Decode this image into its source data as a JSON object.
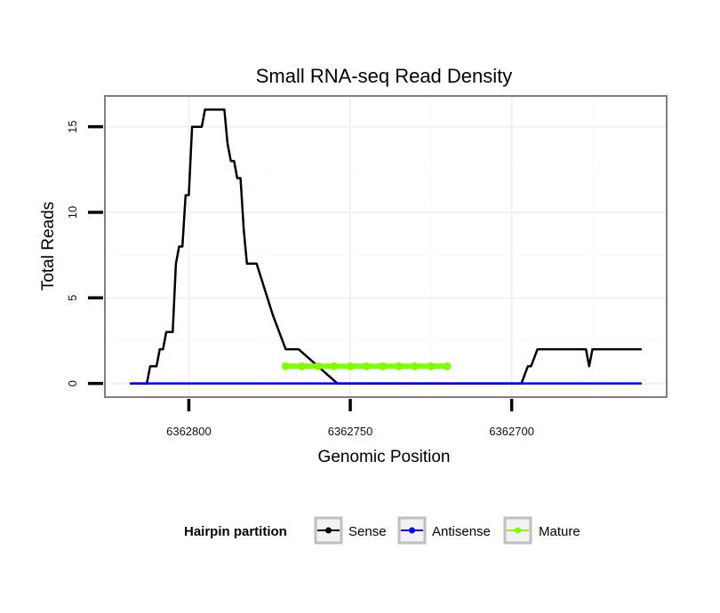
{
  "chart_data": {
    "type": "line",
    "title": "Small RNA-seq Read Density",
    "xlabel": "Genomic Position",
    "ylabel": "Total Reads",
    "x_reversed": true,
    "xlim": [
      6362826,
      6362652
    ],
    "ylim": [
      -0.8,
      16.8
    ],
    "x_ticks": [
      6362800,
      6362750,
      6362700
    ],
    "x_tick_labels": [
      "6362800",
      "6362750",
      "6362700"
    ],
    "y_ticks": [
      0,
      5,
      10,
      15
    ],
    "y_tick_labels": [
      "0",
      "5",
      "10",
      "15"
    ],
    "grid": true,
    "legend": {
      "title": "Hairpin partition",
      "position": "bottom",
      "entries": [
        "Sense",
        "Antisense",
        "Mature"
      ]
    },
    "series": [
      {
        "name": "Sense",
        "color": "#000000",
        "x": [
          6362818,
          6362813,
          6362812,
          6362810,
          6362809,
          6362808,
          6362807,
          6362805,
          6362804,
          6362803,
          6362802,
          6362801,
          6362800,
          6362799,
          6362796,
          6362795,
          6362791,
          6362789,
          6362788,
          6362787,
          6362786,
          6362785,
          6362784,
          6362783,
          6362782,
          6362779,
          6362774,
          6362770,
          6362766,
          6362754,
          6362745,
          6362719,
          6362709,
          6362697,
          6362695,
          6362694,
          6362692,
          6362690,
          6362683,
          6362679,
          6362677,
          6362676,
          6362675,
          6362660
        ],
        "y": [
          0,
          0,
          1,
          1,
          2,
          2,
          3,
          3,
          7,
          8,
          8,
          11,
          11,
          15,
          15,
          16,
          16,
          16,
          14,
          13,
          13,
          12,
          12,
          9,
          7,
          7,
          4,
          2,
          2,
          0,
          0,
          0,
          0,
          0,
          1,
          1,
          2,
          2,
          2,
          2,
          2,
          1,
          2,
          2
        ]
      },
      {
        "name": "Antisense",
        "color": "#0000ff",
        "x": [
          6362818,
          6362660
        ],
        "y": [
          0,
          0
        ]
      },
      {
        "name": "Mature",
        "color": "#7fff00",
        "x": [
          6362770,
          6362765,
          6362760,
          6362755,
          6362750,
          6362745,
          6362740,
          6362735,
          6362730,
          6362725,
          6362720
        ],
        "y": [
          1,
          1,
          1,
          1,
          1,
          1,
          1,
          1,
          1,
          1,
          1
        ]
      }
    ]
  }
}
